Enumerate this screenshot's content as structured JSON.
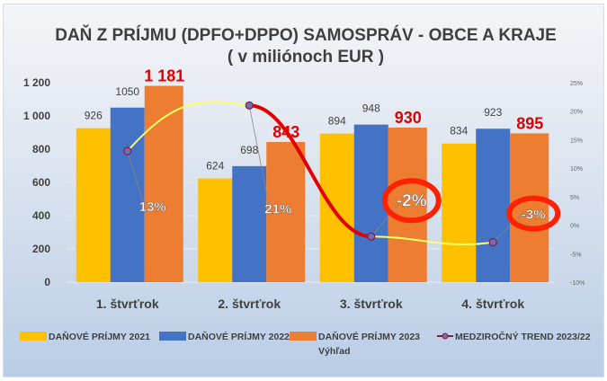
{
  "chart_data": {
    "type": "bar",
    "title": "DAŇ Z PRÍJMU (DPFO+DPPO) SAMOSPRÁV - OBCE A KRAJE",
    "subtitle": "( v miliónoch EUR )",
    "categories": [
      "1. štvrťrok",
      "2. štvrťrok",
      "3. štvrťrok",
      "4. štvrťrok"
    ],
    "ylim": [
      0,
      1200
    ],
    "yticks": [
      "0",
      "200",
      "400",
      "600",
      "800",
      "1 000",
      "1 200"
    ],
    "ytick_values": [
      0,
      200,
      400,
      600,
      800,
      1000,
      1200
    ],
    "y2lim": [
      -10,
      25
    ],
    "y2ticks": [
      "-10%",
      "-5%",
      "0%",
      "5%",
      "10%",
      "15%",
      "20%",
      "25%"
    ],
    "y2tick_values": [
      -10,
      -5,
      0,
      5,
      10,
      15,
      20,
      25
    ],
    "grid": true,
    "legend_position": "bottom",
    "series": [
      {
        "name": "DAŇOVÉ PRÍJMY 2021",
        "color": "#ffc000",
        "values": [
          926,
          624,
          894,
          834
        ],
        "labels": [
          "926",
          "624",
          "894",
          "834"
        ]
      },
      {
        "name": "DAŇOVÉ PRÍJMY 2022",
        "color": "#4472c4",
        "values": [
          1050,
          698,
          948,
          923
        ],
        "labels": [
          "1050",
          "698",
          "948",
          "923"
        ]
      },
      {
        "name": "DAŇOVÉ PRÍJMY 2023",
        "name_line2": "Výhľad",
        "color": "#ed7d31",
        "label_color": "#e00000",
        "values": [
          1181,
          843,
          930,
          895
        ],
        "labels": [
          "1 181",
          "843",
          "930",
          "895"
        ]
      },
      {
        "name": "MEDZIROČNÝ TREND 2023/22",
        "type": "line",
        "axis": "right",
        "color": "#8b1a3a",
        "values": [
          13,
          21,
          -2,
          -3
        ],
        "labels": [
          "13%",
          "21%",
          "-2%",
          "-3%"
        ],
        "segment_colors": [
          "#ffff66",
          "#e00000",
          "#ffff66"
        ],
        "highlighted": [
          false,
          false,
          true,
          true
        ]
      }
    ]
  }
}
